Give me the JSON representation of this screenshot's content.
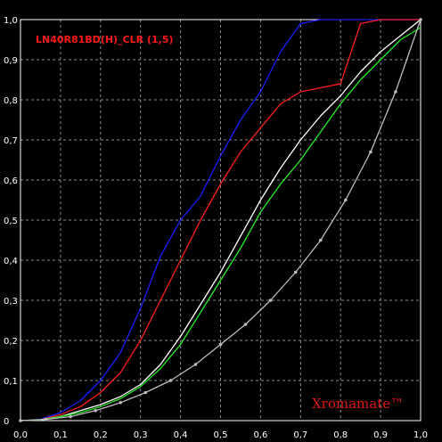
{
  "chart_data": {
    "type": "line",
    "title": "LN40R81BD(H)_CLR (1,5)",
    "watermark": "Xromamate™",
    "xlabel": "",
    "ylabel": "",
    "xlim": [
      0,
      1
    ],
    "ylim": [
      0,
      1
    ],
    "grid": true,
    "legend": "none",
    "x_ticks": [
      "0,0",
      "0,1",
      "0,2",
      "0,3",
      "0,4",
      "0,5",
      "0,6",
      "0,7",
      "0,8",
      "0,9",
      "1,0"
    ],
    "y_ticks": [
      "0",
      "0,1",
      "0,2",
      "0,3",
      "0,4",
      "0,5",
      "0,6",
      "0,7",
      "0,8",
      "0,9",
      "1,0"
    ],
    "series": [
      {
        "color": "#1e1eff",
        "x": [
          0,
          0.05,
          0.1,
          0.15,
          0.2,
          0.25,
          0.3,
          0.35,
          0.4,
          0.45,
          0.5,
          0.55,
          0.6,
          0.65,
          0.7,
          0.75,
          0.8,
          0.85,
          0.9,
          0.95,
          1.0
        ],
        "y": [
          0,
          0.003,
          0.02,
          0.05,
          0.1,
          0.17,
          0.28,
          0.41,
          0.5,
          0.56,
          0.66,
          0.75,
          0.82,
          0.92,
          0.99,
          1.0,
          1.0,
          1.0,
          1.0,
          1.0,
          1.0
        ]
      },
      {
        "color": "#ff1e1e",
        "x": [
          0,
          0.05,
          0.1,
          0.15,
          0.2,
          0.25,
          0.3,
          0.35,
          0.4,
          0.45,
          0.5,
          0.55,
          0.6,
          0.65,
          0.7,
          0.75,
          0.8,
          0.85,
          0.9,
          0.95,
          1.0
        ],
        "y": [
          0,
          0.002,
          0.015,
          0.035,
          0.07,
          0.12,
          0.2,
          0.3,
          0.4,
          0.5,
          0.59,
          0.67,
          0.73,
          0.79,
          0.82,
          0.83,
          0.84,
          0.99,
          1.0,
          1.0,
          1.0
        ]
      },
      {
        "color": "#ffffff",
        "x": [
          0,
          0.05,
          0.1,
          0.15,
          0.2,
          0.25,
          0.3,
          0.35,
          0.4,
          0.45,
          0.5,
          0.55,
          0.6,
          0.65,
          0.7,
          0.75,
          0.8,
          0.85,
          0.9,
          0.95,
          1.0
        ],
        "y": [
          0,
          0.002,
          0.01,
          0.025,
          0.04,
          0.06,
          0.09,
          0.14,
          0.21,
          0.29,
          0.37,
          0.46,
          0.55,
          0.63,
          0.7,
          0.76,
          0.81,
          0.87,
          0.92,
          0.96,
          1.0
        ]
      },
      {
        "color": "#22ee22",
        "x": [
          0,
          0.05,
          0.1,
          0.15,
          0.2,
          0.25,
          0.3,
          0.35,
          0.4,
          0.45,
          0.5,
          0.55,
          0.6,
          0.65,
          0.7,
          0.75,
          0.8,
          0.85,
          0.9,
          0.95,
          1.0
        ],
        "y": [
          0,
          0.002,
          0.01,
          0.02,
          0.035,
          0.055,
          0.085,
          0.13,
          0.19,
          0.27,
          0.35,
          0.43,
          0.52,
          0.59,
          0.65,
          0.72,
          0.79,
          0.85,
          0.9,
          0.95,
          0.98
        ]
      },
      {
        "color": "#bdbdbd",
        "markers": true,
        "x": [
          0,
          0.0625,
          0.125,
          0.1875,
          0.25,
          0.3125,
          0.375,
          0.4375,
          0.5,
          0.5625,
          0.625,
          0.6875,
          0.75,
          0.8125,
          0.875,
          0.9375,
          1.0
        ],
        "y": [
          0,
          0.003,
          0.01,
          0.025,
          0.045,
          0.07,
          0.1,
          0.14,
          0.19,
          0.24,
          0.3,
          0.37,
          0.45,
          0.55,
          0.67,
          0.82,
          1.0
        ]
      }
    ]
  }
}
